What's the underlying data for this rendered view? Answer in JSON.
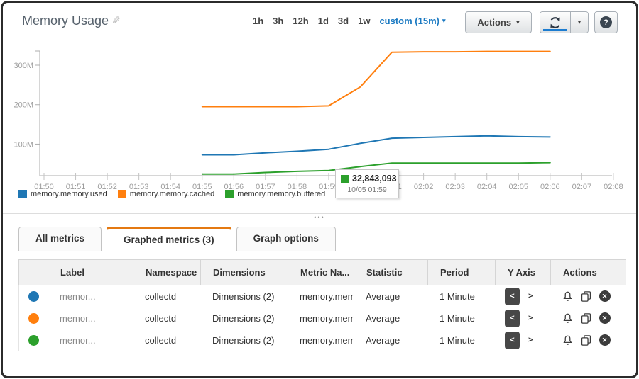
{
  "header": {
    "title": "Memory Usage",
    "time_ranges": [
      "1h",
      "3h",
      "12h",
      "1d",
      "3d",
      "1w"
    ],
    "custom_range_label": "custom (15m)",
    "actions_button": "Actions",
    "link_color": "#1b7ac2",
    "refresh_underline_color": "#1c7cd0"
  },
  "resize_handle": "•••",
  "chart_data": {
    "type": "line",
    "title": "Memory Usage",
    "x_labels": [
      "01:50",
      "01:51",
      "01:52",
      "01:53",
      "01:54",
      "01:55",
      "01:56",
      "01:57",
      "01:58",
      "01:59",
      "02:00",
      "02:01",
      "02:02",
      "02:03",
      "02:04",
      "02:05",
      "02:06",
      "02:07",
      "02:08"
    ],
    "series_start_index": 5,
    "y_ticks": [
      {
        "value": 100,
        "label": "100M"
      },
      {
        "value": 200,
        "label": "200M"
      },
      {
        "value": 300,
        "label": "300M"
      }
    ],
    "ylim": [
      20,
      336
    ],
    "y_unit": "M (millions of bytes)",
    "grid": false,
    "legend_position": "bottom-left",
    "series": [
      {
        "name": "memory.memory.used",
        "color": "#1f77b4",
        "values_millions": [
          73,
          73,
          78,
          82,
          87,
          102,
          115,
          117,
          119,
          121,
          119,
          118
        ]
      },
      {
        "name": "memory.memory.cached",
        "color": "#ff7f0e",
        "values_millions": [
          195,
          195,
          195,
          195,
          197,
          245,
          333,
          334,
          334,
          335,
          335,
          335
        ]
      },
      {
        "name": "memory.memory.buffered",
        "color": "#2ca02c",
        "values_millions": [
          24,
          24,
          28,
          31,
          33,
          43,
          52,
          52,
          52,
          52,
          52,
          53
        ]
      }
    ],
    "tooltip": {
      "value": "32,843,093",
      "timestamp": "10/05 01:59",
      "series": "memory.memory.buffered",
      "series_color": "#2ca02c"
    }
  },
  "tabs": [
    {
      "label": "All metrics",
      "active": false
    },
    {
      "label": "Graphed metrics (3)",
      "active": true
    },
    {
      "label": "Graph options",
      "active": false
    }
  ],
  "metrics_table": {
    "headers": {
      "label": "Label",
      "namespace": "Namespace",
      "dimensions": "Dimensions",
      "metric_name": "Metric Na...",
      "statistic": "Statistic",
      "period": "Period",
      "y_axis": "Y Axis",
      "actions": "Actions"
    },
    "y_axis_left": "<",
    "y_axis_right": ">",
    "remove_glyph": "✕",
    "rows": [
      {
        "color": "#1f77b4",
        "label": "memor...",
        "namespace": "collectd",
        "dimensions": "Dimensions (2)",
        "metric_name": "memory.memo",
        "statistic": "Average",
        "period": "1 Minute"
      },
      {
        "color": "#ff7f0e",
        "label": "memor...",
        "namespace": "collectd",
        "dimensions": "Dimensions (2)",
        "metric_name": "memory.memo",
        "statistic": "Average",
        "period": "1 Minute"
      },
      {
        "color": "#2ca02c",
        "label": "memor...",
        "namespace": "collectd",
        "dimensions": "Dimensions (2)",
        "metric_name": "memory.memo",
        "statistic": "Average",
        "period": "1 Minute"
      }
    ]
  }
}
